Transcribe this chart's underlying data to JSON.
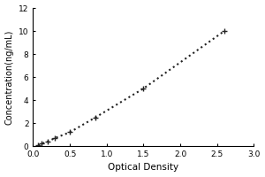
{
  "x_data": [
    0.07,
    0.12,
    0.2,
    0.3,
    0.5,
    0.85,
    1.5,
    2.6
  ],
  "y_data": [
    0.05,
    0.2,
    0.4,
    0.7,
    1.2,
    2.5,
    5.0,
    10.0
  ],
  "xlabel": "Optical Density",
  "ylabel": "Concentration(ng/mL)",
  "xlim": [
    0,
    3
  ],
  "ylim": [
    0,
    12
  ],
  "xticks": [
    0,
    0.5,
    1,
    1.5,
    2,
    2.5,
    3
  ],
  "yticks": [
    0,
    2,
    4,
    6,
    8,
    10,
    12
  ],
  "line_color": "#222222",
  "marker_color": "#222222",
  "background_color": "#ffffff",
  "line_style": "dotted",
  "marker_style": "+",
  "marker_size": 5,
  "marker_edge_width": 1.0,
  "line_width": 1.5,
  "xlabel_fontsize": 7.5,
  "ylabel_fontsize": 7.0,
  "tick_fontsize": 6.5,
  "fig_width": 3.0,
  "fig_height": 2.0,
  "dpi": 100
}
